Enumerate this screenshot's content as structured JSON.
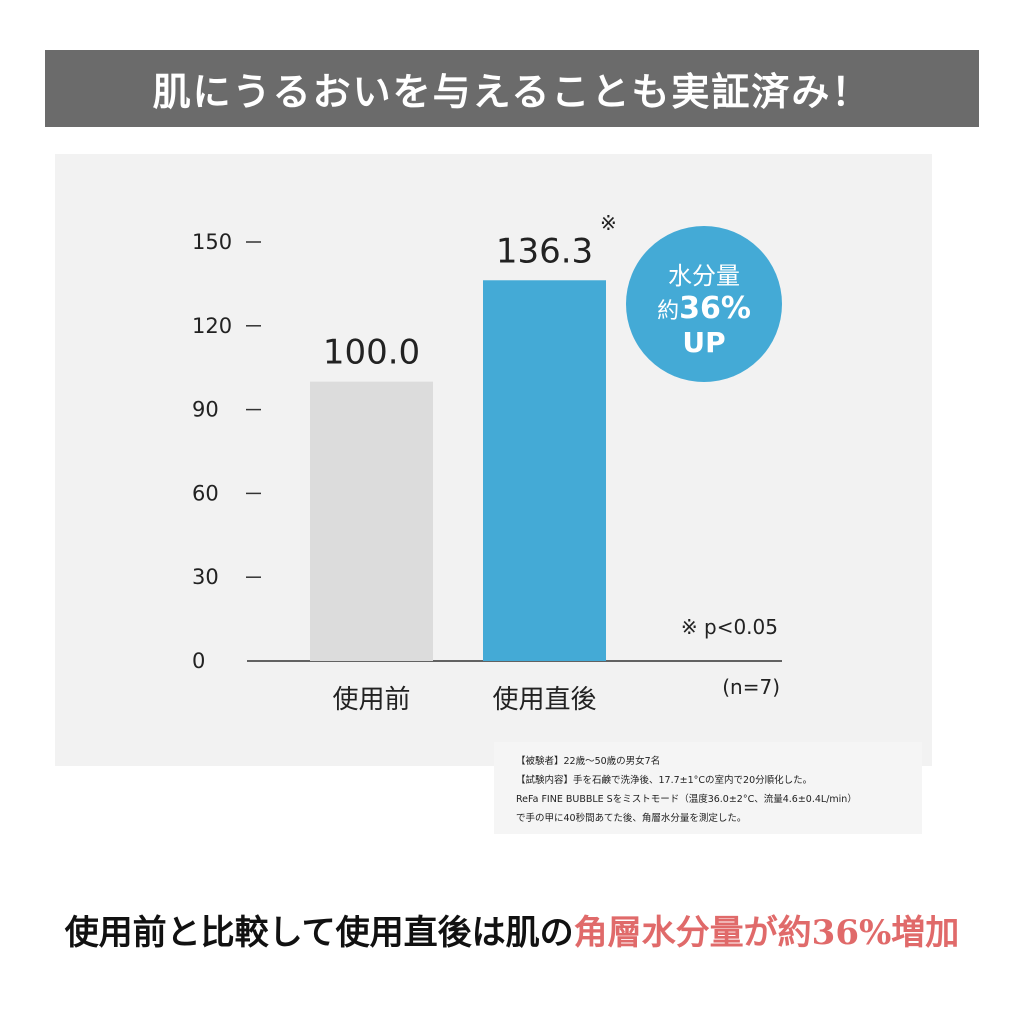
{
  "header": {
    "title": "肌にうるおいを与えることも実証済み！"
  },
  "chart_data": {
    "type": "bar",
    "categories": [
      "使用前",
      "使用直後"
    ],
    "values": [
      100.0,
      136.3
    ],
    "value_labels": [
      "100.0",
      "136.3"
    ],
    "value_label_mark": "※",
    "ylim": [
      0,
      150
    ],
    "yticks": [
      0,
      30,
      60,
      90,
      120,
      150
    ],
    "bar_colors": [
      "#dcdcdc",
      "#44aad6"
    ],
    "significance_note": "※ p<0.05",
    "sample_note": "(n=7)",
    "grid": false,
    "badge": {
      "line1": "水分量",
      "line2_prefix": "約",
      "line2_value": "36%",
      "line3": "UP",
      "color": "#44aad6"
    }
  },
  "footnote": {
    "lines": [
      "【被験者】22歳～50歳の男女7名",
      "【試験内容】手を石鹸で洗浄後、17.7±1°Cの室内で20分順化した。",
      "ReFa FINE BUBBLE Sをミストモード（温度36.0±2°C、流量4.6±0.4L/min）",
      "で手の甲に40秒間あてた後、角層水分量を測定した。"
    ]
  },
  "summary": {
    "prefix": "使用前と比較して使用直後は肌の",
    "highlight": "角層水分量が約36%増加",
    "highlight_color": "#e06a6a"
  }
}
